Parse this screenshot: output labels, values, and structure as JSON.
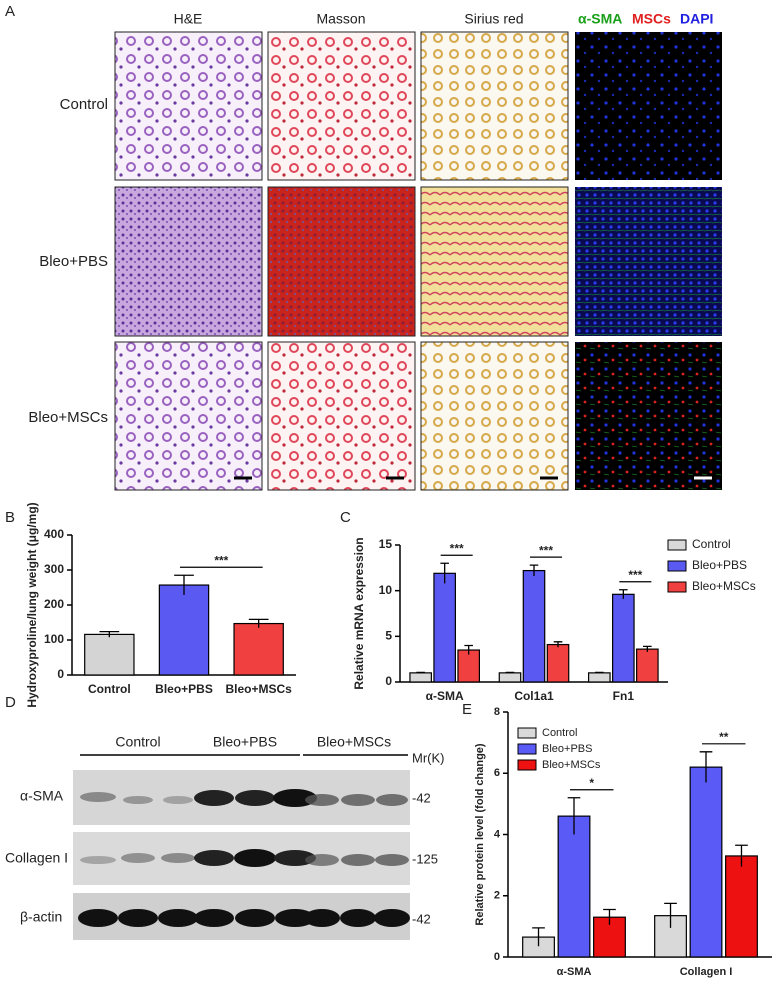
{
  "panel_a": {
    "letter": "A",
    "columns": [
      "H&E",
      "Masson",
      "Sirius red"
    ],
    "if_labels": [
      "α-SMA",
      "MSCs",
      "DAPI"
    ],
    "rows": [
      "Control",
      "Bleo+PBS",
      "Bleo+MSCs"
    ]
  },
  "panel_d": {
    "letter": "D",
    "groups": [
      "Control",
      "Bleo+PBS",
      "Bleo+MSCs"
    ],
    "mr": "Mr(K)",
    "proteins": [
      "α-SMA",
      "Collagen I",
      "β-actin"
    ],
    "weights": [
      "-42",
      "-125",
      "-42"
    ]
  },
  "chart_data": [
    {
      "type": "bar",
      "letter": "B",
      "ylabel": "Hydroxyproline/lung weight (μg/mg)",
      "categories": [
        "Control",
        "Bleo+PBS",
        "Bleo+MSCs"
      ],
      "series": [
        {
          "colors": [
            "#d4d4d4",
            "#5a5af2",
            "#f04040"
          ],
          "values": [
            116,
            257,
            147
          ],
          "errors": [
            8,
            28,
            12
          ]
        }
      ],
      "ylim": [
        0,
        400
      ],
      "yticks": [
        0,
        100,
        200,
        300,
        400
      ],
      "annotations": [
        "***"
      ]
    },
    {
      "type": "bar",
      "letter": "C",
      "ylabel": "Relative mRNA expression",
      "categories": [
        "α-SMA",
        "Col1a1",
        "Fn1"
      ],
      "series": [
        {
          "name": "Control",
          "color": "#d9d9d9",
          "values": [
            1,
            1,
            1
          ],
          "errors": [
            0.05,
            0.05,
            0.05
          ]
        },
        {
          "name": "Bleo+PBS",
          "color": "#5a5af2",
          "values": [
            11.9,
            12.2,
            9.6
          ],
          "errors": [
            1.1,
            0.6,
            0.5
          ]
        },
        {
          "name": "Bleo+MSCs",
          "color": "#f04040",
          "values": [
            3.5,
            4.1,
            3.6
          ],
          "errors": [
            0.5,
            0.3,
            0.3
          ]
        }
      ],
      "ylim": [
        0,
        15
      ],
      "yticks": [
        0,
        5,
        10,
        15
      ],
      "annotations": [
        "***",
        "***",
        "***"
      ]
    },
    {
      "type": "bar",
      "letter": "E",
      "ylabel": "Relative protein level (fold change)",
      "categories": [
        "α-SMA",
        "Collagen I"
      ],
      "series": [
        {
          "name": "Control",
          "color": "#d9d9d9",
          "values": [
            0.65,
            1.35
          ],
          "errors": [
            0.3,
            0.4
          ]
        },
        {
          "name": "Bleo+PBS",
          "color": "#5a5af7",
          "values": [
            4.6,
            6.2
          ],
          "errors": [
            0.6,
            0.5
          ]
        },
        {
          "name": "Bleo+MSCs",
          "color": "#ee1111",
          "values": [
            1.3,
            3.3
          ],
          "errors": [
            0.25,
            0.35
          ]
        }
      ],
      "ylim": [
        0,
        8
      ],
      "yticks": [
        0,
        2,
        4,
        6,
        8
      ],
      "annotations": [
        "*",
        "**"
      ]
    }
  ]
}
